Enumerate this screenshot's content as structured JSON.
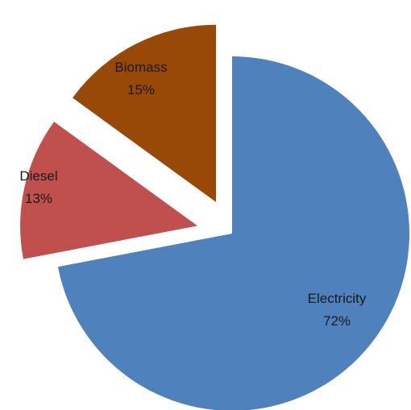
{
  "chart_data": {
    "type": "pie",
    "title": "",
    "slices": [
      {
        "label": "Electricity",
        "pct_label": "72%",
        "value": 72,
        "color": "#4F81BD"
      },
      {
        "label": "Diesel",
        "pct_label": "13%",
        "value": 13,
        "color": "#C0504D"
      },
      {
        "label": "Biomass",
        "pct_label": "15%",
        "value": 15,
        "color": "#984807"
      }
    ],
    "exploded": [
      "Diesel",
      "Biomass"
    ],
    "legend": "none"
  }
}
